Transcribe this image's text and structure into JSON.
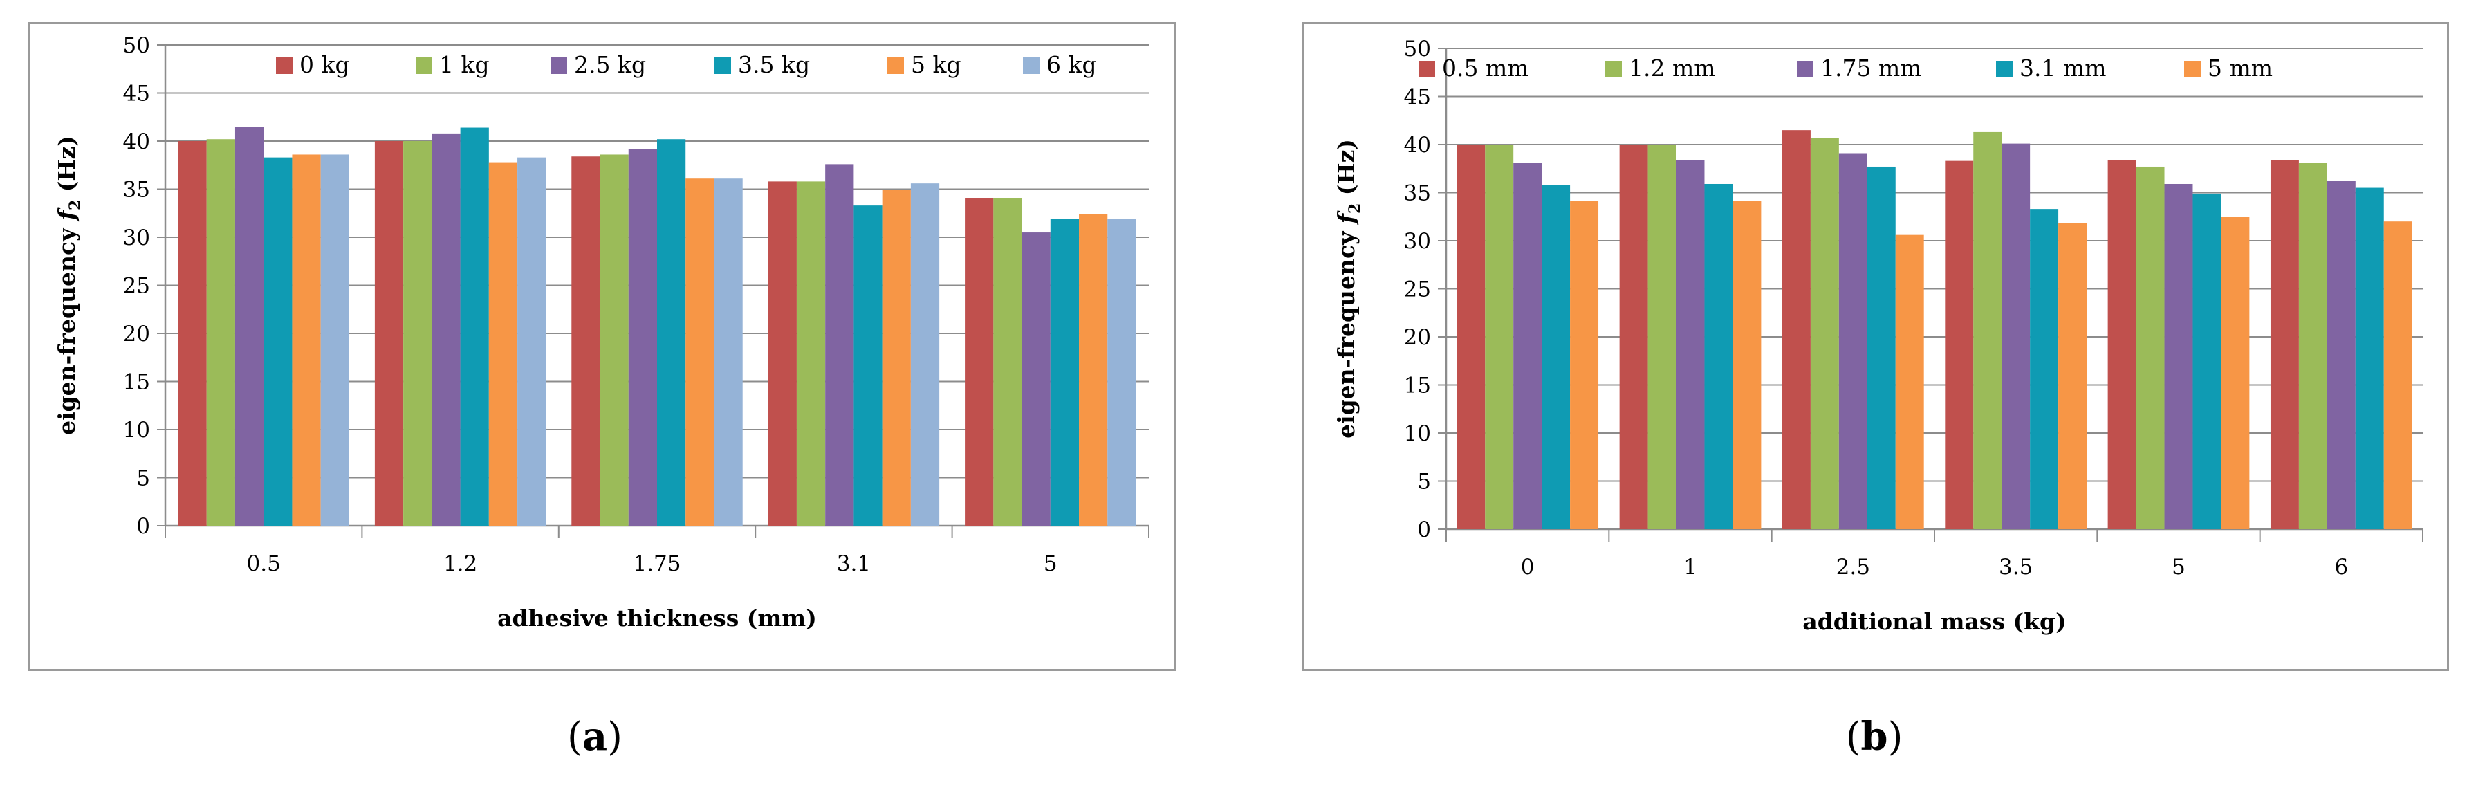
{
  "chart_data": [
    {
      "type": "bar",
      "panel_label": "a",
      "xlabel": "adhesive thickness (mm)",
      "ylabel_main": "eigen-frequency ",
      "ylabel_symbol": "f",
      "ylabel_sub": "2",
      "ylabel_unit": " (Hz)",
      "ylim": [
        0,
        50
      ],
      "yticks": [
        0,
        5,
        10,
        15,
        20,
        25,
        30,
        35,
        40,
        45,
        50
      ],
      "grid": true,
      "legend_position": "top",
      "categories": [
        "0.5",
        "1.2",
        "1.75",
        "3.1",
        "5"
      ],
      "series": [
        {
          "name": "0 kg",
          "color": "#c0504d",
          "values": [
            40.0,
            40.0,
            38.4,
            35.8,
            34.1
          ]
        },
        {
          "name": "1 kg",
          "color": "#9bbb59",
          "values": [
            40.2,
            40.0,
            38.6,
            35.8,
            34.1
          ]
        },
        {
          "name": "2.5 kg",
          "color": "#8064a2",
          "values": [
            41.5,
            40.8,
            39.2,
            37.6,
            30.5
          ]
        },
        {
          "name": "3.5 kg",
          "color": "#0f9bb3",
          "values": [
            38.3,
            41.4,
            40.2,
            33.3,
            31.9
          ]
        },
        {
          "name": "5 kg",
          "color": "#f79646",
          "values": [
            38.6,
            37.8,
            36.1,
            34.9,
            32.4
          ]
        },
        {
          "name": "6 kg",
          "color": "#95b3d7",
          "values": [
            38.6,
            38.3,
            36.1,
            35.6,
            31.9
          ]
        }
      ]
    },
    {
      "type": "bar",
      "panel_label": "b",
      "xlabel": "additional mass (kg)",
      "ylabel_main": "eigen-frequency ",
      "ylabel_symbol": "f",
      "ylabel_sub": "2",
      "ylabel_unit": " (Hz)",
      "ylim": [
        0,
        50
      ],
      "yticks": [
        0,
        5,
        10,
        15,
        20,
        25,
        30,
        35,
        40,
        45,
        50
      ],
      "grid": true,
      "legend_position": "top",
      "categories": [
        "0",
        "1",
        "2.5",
        "3.5",
        "5",
        "6"
      ],
      "series": [
        {
          "name": "0.5 mm",
          "color": "#c0504d",
          "values": [
            40.0,
            40.0,
            41.5,
            38.3,
            38.4,
            38.4
          ]
        },
        {
          "name": "1.2 mm",
          "color": "#9bbb59",
          "values": [
            40.0,
            40.0,
            40.7,
            41.3,
            37.7,
            38.1
          ]
        },
        {
          "name": "1.75 mm",
          "color": "#8064a2",
          "values": [
            38.1,
            38.4,
            39.1,
            40.1,
            35.9,
            36.2
          ]
        },
        {
          "name": "3.1 mm",
          "color": "#0f9bb3",
          "values": [
            35.8,
            35.9,
            37.7,
            33.3,
            34.9,
            35.5
          ]
        },
        {
          "name": "5 mm",
          "color": "#f79646",
          "values": [
            34.1,
            34.1,
            30.6,
            31.8,
            32.5,
            32.0
          ]
        }
      ]
    }
  ],
  "captions": {
    "a": "a",
    "b": "b"
  }
}
